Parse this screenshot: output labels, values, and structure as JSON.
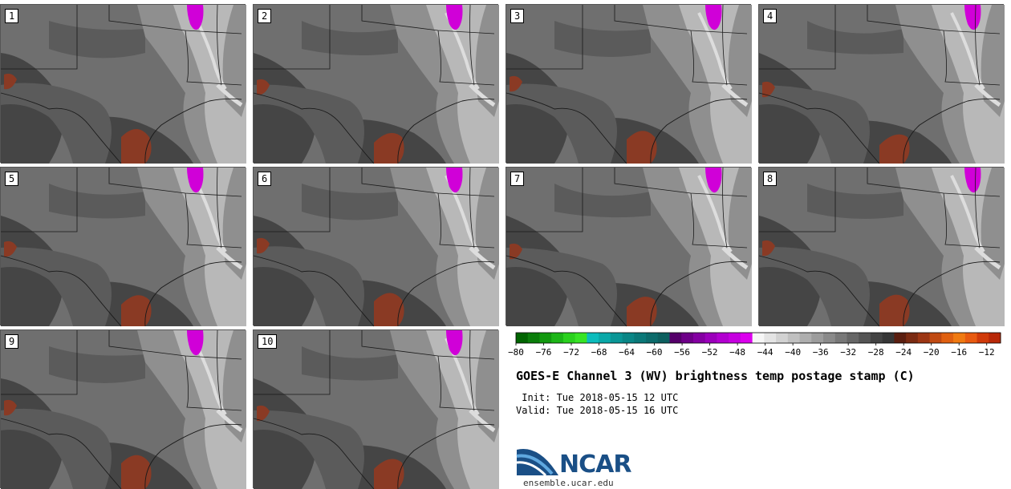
{
  "figure": {
    "title": "GOES-E Channel 3 (WV) brightness temp postage stamp (C)",
    "init_label": " Init: Tue 2018-05-15 12 UTC",
    "valid_label": "Valid: Tue 2018-05-15 16 UTC",
    "org_name": "NCAR",
    "org_url": "ensemble.ucar.edu"
  },
  "panels": [
    {
      "label": "1"
    },
    {
      "label": "2"
    },
    {
      "label": "3"
    },
    {
      "label": "4"
    },
    {
      "label": "5"
    },
    {
      "label": "6"
    },
    {
      "label": "7"
    },
    {
      "label": "8"
    },
    {
      "label": "9"
    },
    {
      "label": "10"
    }
  ],
  "colorbar": {
    "unit": "C",
    "range": [
      -80,
      -10
    ],
    "tick_labels": [
      "-80",
      "-76",
      "-72",
      "-68",
      "-64",
      "-60",
      "-56",
      "-52",
      "-48",
      "-44",
      "-40",
      "-36",
      "-32",
      "-28",
      "-24",
      "-20",
      "-16",
      "-12"
    ],
    "colors": [
      "#006400",
      "#0a7d0a",
      "#12990f",
      "#1cb517",
      "#2ad11e",
      "#38e426",
      "#0cbcbc",
      "#0aa8a8",
      "#0a9696",
      "#0a8686",
      "#0b7878",
      "#0c6b6b",
      "#0d5f5f",
      "#55006a",
      "#6e0088",
      "#8400a2",
      "#9b00bb",
      "#b200d0",
      "#c600e0",
      "#dc00ee",
      "#f6f6f6",
      "#e4e4e4",
      "#d2d2d2",
      "#c0c0c0",
      "#aeaeae",
      "#9c9c9c",
      "#8a8a8a",
      "#787878",
      "#666666",
      "#545454",
      "#434343",
      "#363636",
      "#5a1e10",
      "#7a2a12",
      "#9c3614",
      "#c04a12",
      "#e06010",
      "#f07a12",
      "#e85a10",
      "#d03a0a",
      "#b82808"
    ]
  },
  "map_colors": {
    "background": "#6f6f6f",
    "dark": "#454545",
    "mid": "#5b5b5b",
    "light": "#8f8f8f",
    "lighter": "#b8b8b8",
    "bright": "#dddddd",
    "warm": "#8a3a24",
    "magenta": "#d000d8",
    "border": "#1a1a1a"
  }
}
